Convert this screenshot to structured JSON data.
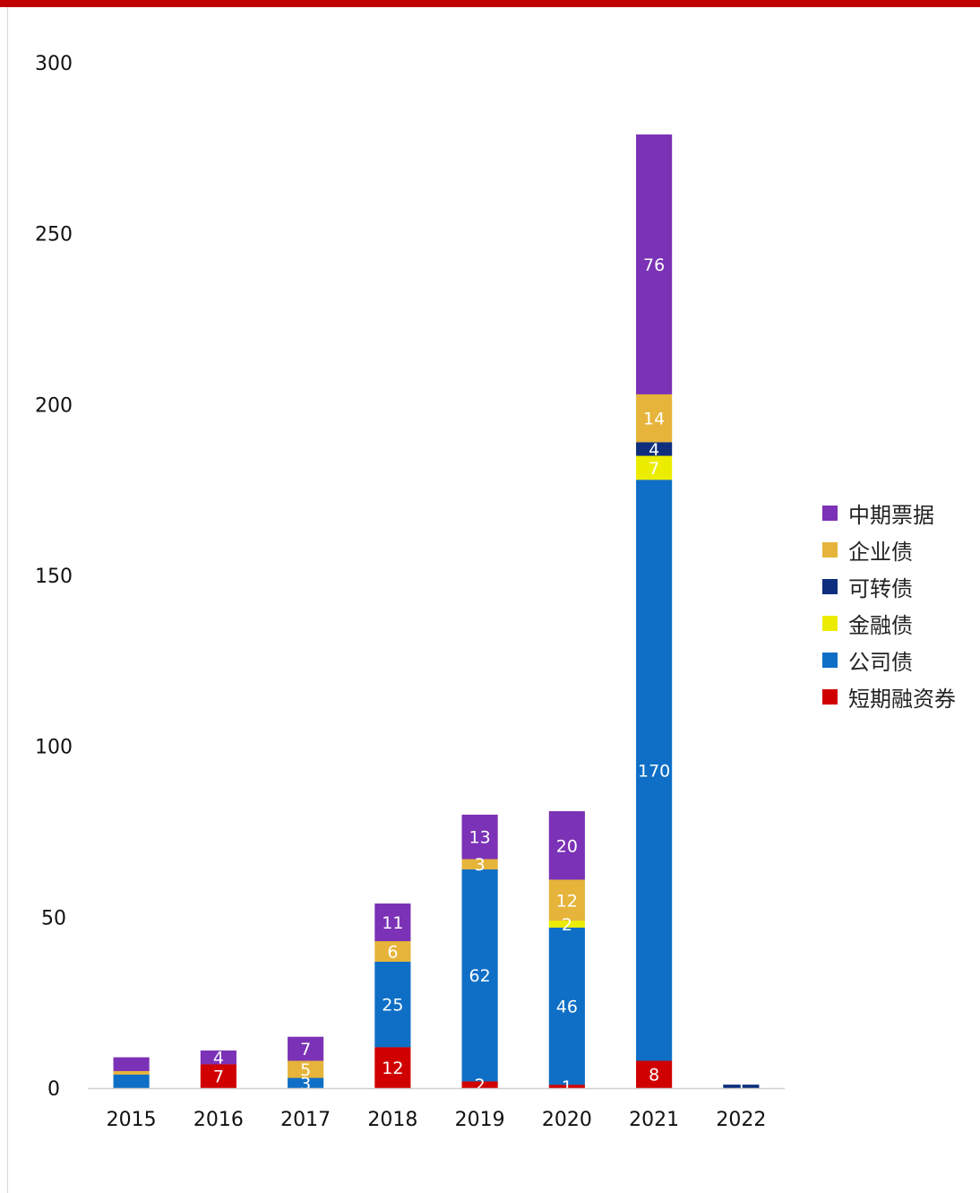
{
  "chart_data": {
    "type": "bar",
    "stacked": true,
    "categories": [
      "2015",
      "2016",
      "2017",
      "2018",
      "2019",
      "2020",
      "2021",
      "2022"
    ],
    "series": [
      {
        "name": "短期融资券",
        "color": "#d00000",
        "values": [
          0,
          7,
          0,
          12,
          2,
          1,
          8,
          0
        ]
      },
      {
        "name": "公司债",
        "color": "#0f6fc6",
        "values": [
          4,
          0,
          3,
          25,
          62,
          46,
          170,
          0
        ]
      },
      {
        "name": "金融债",
        "color": "#ecec00",
        "values": [
          0,
          0,
          0,
          0,
          0,
          2,
          7,
          0
        ]
      },
      {
        "name": "可转债",
        "color": "#0e2f7e",
        "values": [
          0,
          0,
          0,
          0,
          0,
          0,
          4,
          1
        ]
      },
      {
        "name": "企业债",
        "color": "#e6b43a",
        "values": [
          1,
          0,
          5,
          6,
          3,
          12,
          14,
          0
        ]
      },
      {
        "name": "中期票据",
        "color": "#7b32b6",
        "values": [
          4,
          4,
          7,
          11,
          13,
          20,
          76,
          0
        ]
      }
    ],
    "ylim": [
      0,
      300
    ],
    "yticks": [
      0,
      50,
      100,
      150,
      200,
      250,
      300
    ],
    "grid": false,
    "legend_position": "right"
  },
  "legend": [
    {
      "name": "中期票据",
      "color": "#7b32b6"
    },
    {
      "name": "企业债",
      "color": "#e6b43a"
    },
    {
      "name": "可转债",
      "color": "#0e2f7e"
    },
    {
      "name": "金融债",
      "color": "#ecec00"
    },
    {
      "name": "公司债",
      "color": "#0f6fc6"
    },
    {
      "name": "短期融资券",
      "color": "#d00000"
    }
  ]
}
